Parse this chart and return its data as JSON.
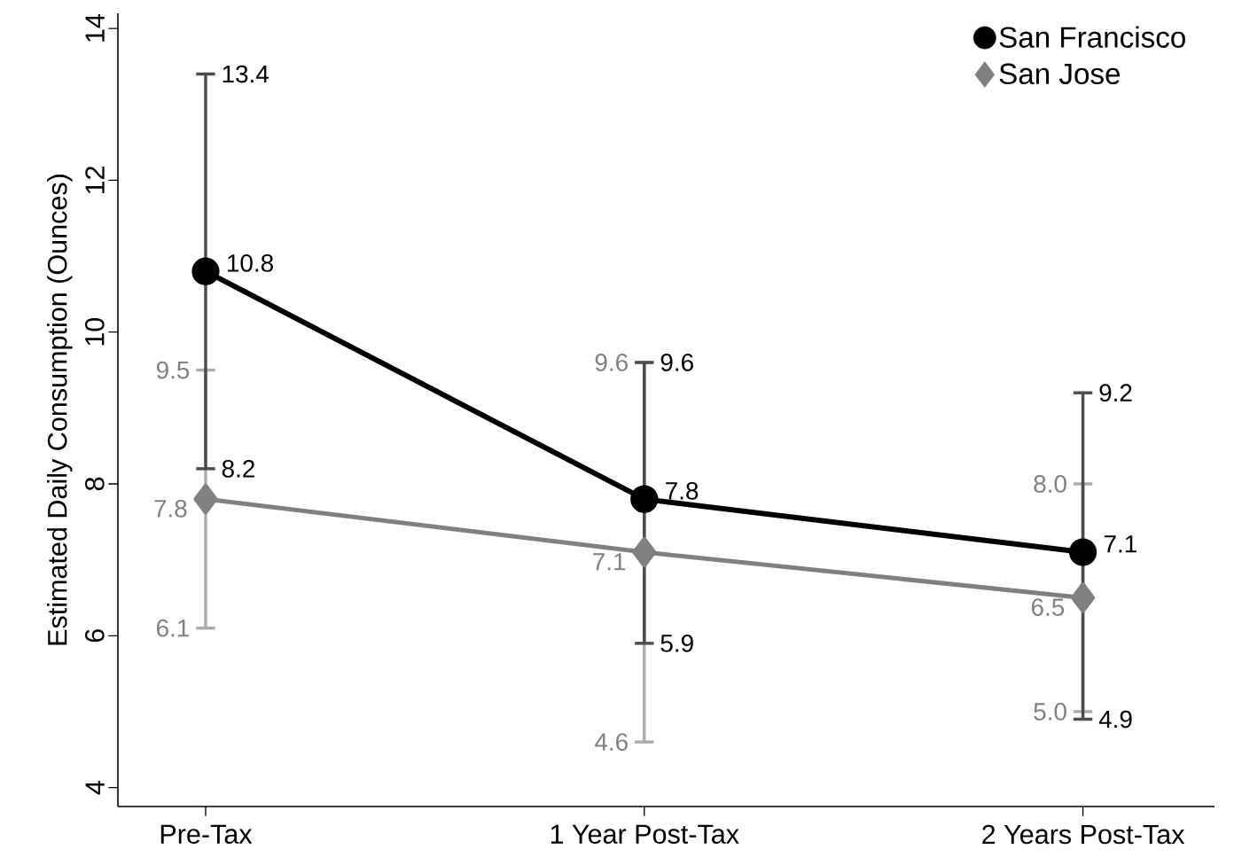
{
  "chart_data": {
    "type": "line",
    "ylabel": "Estimated Daily Consumption (Ounces)",
    "categories": [
      "Pre-Tax",
      "1 Year Post-Tax",
      "2 Years Post-Tax"
    ],
    "series": [
      {
        "name": "San Francisco",
        "color": "#000000",
        "marker": "circle",
        "values": [
          10.8,
          7.8,
          7.1
        ],
        "errors": [
          [
            8.2,
            13.4
          ],
          [
            5.9,
            9.6
          ],
          [
            4.9,
            9.2
          ]
        ]
      },
      {
        "name": "San Jose",
        "color": "#808080",
        "marker": "diamond",
        "values": [
          7.8,
          7.1,
          6.5
        ],
        "errors": [
          [
            6.1,
            9.5
          ],
          [
            4.6,
            9.6
          ],
          [
            5.0,
            8.0
          ]
        ]
      }
    ],
    "ylim": [
      3.75,
      14.2
    ],
    "yticks": [
      4,
      6,
      8,
      10,
      12,
      14
    ],
    "grid": false,
    "legend": "top right",
    "data_labels": true,
    "annotations": [
      {
        "text": "13.4",
        "x": "Pre-Tax",
        "y": 13.4
      },
      {
        "text": "8.2",
        "x": "Pre-Tax",
        "y": 8.2
      },
      {
        "text": "9.6",
        "x": "1 Year Post-Tax",
        "y": 9.6
      },
      {
        "text": "5.9",
        "x": "1 Year Post-Tax",
        "y": 5.9
      },
      {
        "text": "9.2",
        "x": "2 Years Post-Tax",
        "y": 9.2
      },
      {
        "text": "4.9",
        "x": "2 Years Post-Tax",
        "y": 4.9
      },
      {
        "text": "9.5",
        "x": "Pre-Tax",
        "y": 9.5
      },
      {
        "text": "6.1",
        "x": "Pre-Tax",
        "y": 6.1
      },
      {
        "text": "9.6",
        "x": "1 Year Post-Tax",
        "y": 9.6
      },
      {
        "text": "4.6",
        "x": "1 Year Post-Tax",
        "y": 4.6
      },
      {
        "text": "8.0",
        "x": "2 Years Post-Tax",
        "y": 8.0
      },
      {
        "text": "5.0",
        "x": "2 Years Post-Tax",
        "y": 5.0
      }
    ]
  }
}
